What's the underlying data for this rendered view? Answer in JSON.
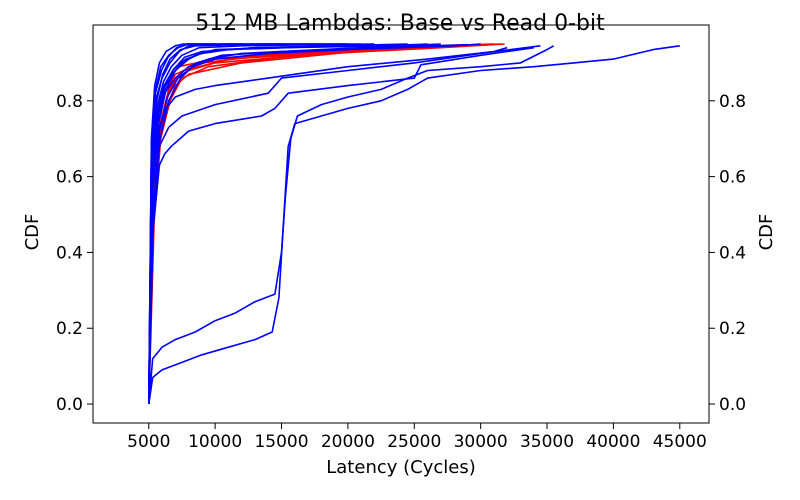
{
  "chart_data": {
    "type": "line",
    "title": "512 MB Lambdas: Base vs Read 0-bit",
    "xlabel": "Latency (Cycles)",
    "ylabel": "CDF",
    "ylabel_right": "CDF",
    "xlim": [
      800,
      47200
    ],
    "ylim": [
      -0.05,
      1.0
    ],
    "xticks": [
      5000,
      10000,
      15000,
      20000,
      25000,
      30000,
      35000,
      40000,
      45000
    ],
    "yticks": [
      0.0,
      0.2,
      0.4,
      0.6,
      0.8
    ],
    "xtick_labels": [
      "5000",
      "10000",
      "15000",
      "20000",
      "25000",
      "30000",
      "35000",
      "40000",
      "45000"
    ],
    "ytick_labels": [
      "0.0",
      "0.2",
      "0.4",
      "0.6",
      "0.8"
    ],
    "grid": false,
    "colors": {
      "base": "#ff0000",
      "read": "#0000ff"
    },
    "series": [
      {
        "color": "#ff0000",
        "points": [
          [
            5000,
            0
          ],
          [
            5200,
            0.42
          ],
          [
            5500,
            0.62
          ],
          [
            6000,
            0.75
          ],
          [
            6500,
            0.82
          ],
          [
            7000,
            0.86
          ],
          [
            8000,
            0.88
          ],
          [
            10000,
            0.9
          ],
          [
            20000,
            0.93
          ],
          [
            28000,
            0.945
          ],
          [
            31000,
            0.95
          ]
        ]
      },
      {
        "color": "#ff0000",
        "points": [
          [
            5000,
            0
          ],
          [
            5300,
            0.5
          ],
          [
            5700,
            0.68
          ],
          [
            6300,
            0.78
          ],
          [
            7000,
            0.84
          ],
          [
            8000,
            0.87
          ],
          [
            12000,
            0.9
          ],
          [
            22000,
            0.935
          ],
          [
            31500,
            0.95
          ]
        ]
      },
      {
        "color": "#ff0000",
        "points": [
          [
            5000,
            0
          ],
          [
            5200,
            0.55
          ],
          [
            5600,
            0.72
          ],
          [
            6200,
            0.82
          ],
          [
            7000,
            0.87
          ],
          [
            9000,
            0.9
          ],
          [
            15000,
            0.925
          ],
          [
            25000,
            0.94
          ],
          [
            30500,
            0.948
          ]
        ]
      },
      {
        "color": "#ff0000",
        "points": [
          [
            5000,
            0
          ],
          [
            5400,
            0.48
          ],
          [
            5900,
            0.7
          ],
          [
            6600,
            0.8
          ],
          [
            7500,
            0.86
          ],
          [
            9500,
            0.89
          ],
          [
            16000,
            0.92
          ],
          [
            27000,
            0.94
          ],
          [
            31800,
            0.95
          ]
        ]
      },
      {
        "color": "#ff0000",
        "points": [
          [
            5000,
            0
          ],
          [
            5250,
            0.6
          ],
          [
            5650,
            0.76
          ],
          [
            6200,
            0.84
          ],
          [
            7200,
            0.89
          ],
          [
            10000,
            0.91
          ],
          [
            20000,
            0.935
          ],
          [
            29000,
            0.948
          ]
        ]
      },
      {
        "color": "#ff0000",
        "points": [
          [
            5000,
            0
          ],
          [
            5350,
            0.52
          ],
          [
            5800,
            0.73
          ],
          [
            6500,
            0.83
          ],
          [
            7600,
            0.88
          ],
          [
            11000,
            0.91
          ],
          [
            22000,
            0.935
          ],
          [
            30800,
            0.95
          ]
        ]
      },
      {
        "color": "#0000ff",
        "points": [
          [
            5000,
            0
          ],
          [
            5300,
            0.07
          ],
          [
            6000,
            0.09
          ],
          [
            7500,
            0.11
          ],
          [
            9000,
            0.13
          ],
          [
            11000,
            0.15
          ],
          [
            13000,
            0.17
          ],
          [
            14300,
            0.19
          ],
          [
            14800,
            0.28
          ],
          [
            15100,
            0.45
          ],
          [
            15500,
            0.68
          ],
          [
            16000,
            0.74
          ],
          [
            18000,
            0.76
          ],
          [
            20000,
            0.78
          ],
          [
            22500,
            0.8
          ],
          [
            24500,
            0.83
          ],
          [
            26000,
            0.86
          ],
          [
            30000,
            0.88
          ],
          [
            34000,
            0.89
          ],
          [
            37000,
            0.9
          ],
          [
            40000,
            0.91
          ],
          [
            43000,
            0.935
          ],
          [
            45000,
            0.945
          ]
        ]
      },
      {
        "color": "#0000ff",
        "points": [
          [
            5000,
            0
          ],
          [
            5300,
            0.12
          ],
          [
            6000,
            0.15
          ],
          [
            7000,
            0.17
          ],
          [
            8500,
            0.19
          ],
          [
            10000,
            0.22
          ],
          [
            11500,
            0.24
          ],
          [
            13000,
            0.27
          ],
          [
            14500,
            0.29
          ],
          [
            15000,
            0.4
          ],
          [
            15300,
            0.55
          ],
          [
            15700,
            0.7
          ],
          [
            16200,
            0.76
          ],
          [
            18000,
            0.79
          ],
          [
            20000,
            0.81
          ],
          [
            22500,
            0.83
          ],
          [
            24500,
            0.86
          ],
          [
            26000,
            0.88
          ],
          [
            30000,
            0.89
          ],
          [
            33000,
            0.9
          ],
          [
            35000,
            0.935
          ],
          [
            35500,
            0.945
          ]
        ]
      },
      {
        "color": "#0000ff",
        "points": [
          [
            5000,
            0
          ],
          [
            5300,
            0.45
          ],
          [
            5800,
            0.63
          ],
          [
            6200,
            0.66
          ],
          [
            6700,
            0.68
          ],
          [
            8000,
            0.72
          ],
          [
            10000,
            0.74
          ],
          [
            13500,
            0.76
          ],
          [
            14000,
            0.77
          ],
          [
            14500,
            0.78
          ],
          [
            15500,
            0.82
          ],
          [
            20000,
            0.84
          ],
          [
            25000,
            0.86
          ],
          [
            25500,
            0.895
          ],
          [
            30000,
            0.92
          ],
          [
            34000,
            0.94
          ]
        ]
      },
      {
        "color": "#0000ff",
        "points": [
          [
            5000,
            0
          ],
          [
            5300,
            0.5
          ],
          [
            5800,
            0.68
          ],
          [
            6500,
            0.73
          ],
          [
            7500,
            0.76
          ],
          [
            10000,
            0.79
          ],
          [
            14000,
            0.82
          ],
          [
            15000,
            0.86
          ],
          [
            20000,
            0.88
          ],
          [
            25000,
            0.9
          ],
          [
            30000,
            0.925
          ],
          [
            34500,
            0.945
          ]
        ]
      },
      {
        "color": "#0000ff",
        "points": [
          [
            5000,
            0
          ],
          [
            5250,
            0.55
          ],
          [
            5700,
            0.72
          ],
          [
            6300,
            0.78
          ],
          [
            7000,
            0.81
          ],
          [
            8500,
            0.83
          ],
          [
            10000,
            0.84
          ],
          [
            14000,
            0.86
          ],
          [
            20000,
            0.89
          ],
          [
            26000,
            0.91
          ],
          [
            31000,
            0.93
          ],
          [
            32000,
            0.94
          ]
        ]
      },
      {
        "color": "#0000ff",
        "points": [
          [
            5000,
            0
          ],
          [
            5200,
            0.6
          ],
          [
            5600,
            0.76
          ],
          [
            6100,
            0.83
          ],
          [
            6800,
            0.87
          ],
          [
            7500,
            0.9
          ],
          [
            8500,
            0.92
          ],
          [
            10000,
            0.935
          ],
          [
            15000,
            0.94
          ],
          [
            23000,
            0.945
          ],
          [
            26000,
            0.95
          ]
        ]
      },
      {
        "color": "#0000ff",
        "points": [
          [
            5000,
            0
          ],
          [
            5300,
            0.58
          ],
          [
            5700,
            0.74
          ],
          [
            6200,
            0.82
          ],
          [
            7000,
            0.86
          ],
          [
            8000,
            0.89
          ],
          [
            9500,
            0.91
          ],
          [
            12000,
            0.925
          ],
          [
            18000,
            0.935
          ],
          [
            24000,
            0.945
          ],
          [
            27000,
            0.95
          ]
        ]
      },
      {
        "color": "#0000ff",
        "points": [
          [
            5000,
            0
          ],
          [
            5200,
            0.65
          ],
          [
            5500,
            0.8
          ],
          [
            6000,
            0.86
          ],
          [
            6600,
            0.9
          ],
          [
            7300,
            0.93
          ],
          [
            8000,
            0.945
          ],
          [
            11000,
            0.95
          ],
          [
            20000,
            0.95
          ]
        ]
      },
      {
        "color": "#0000ff",
        "points": [
          [
            5000,
            0
          ],
          [
            5250,
            0.62
          ],
          [
            5600,
            0.78
          ],
          [
            6100,
            0.85
          ],
          [
            6700,
            0.89
          ],
          [
            7500,
            0.92
          ],
          [
            8800,
            0.94
          ],
          [
            12000,
            0.945
          ],
          [
            22000,
            0.95
          ]
        ]
      },
      {
        "color": "#0000ff",
        "points": [
          [
            5000,
            0
          ],
          [
            5300,
            0.56
          ],
          [
            5750,
            0.74
          ],
          [
            6300,
            0.83
          ],
          [
            7000,
            0.88
          ],
          [
            8000,
            0.91
          ],
          [
            9200,
            0.93
          ],
          [
            13000,
            0.94
          ],
          [
            25000,
            0.948
          ]
        ]
      },
      {
        "color": "#0000ff",
        "points": [
          [
            5000,
            0
          ],
          [
            5200,
            0.68
          ],
          [
            5500,
            0.83
          ],
          [
            5900,
            0.89
          ],
          [
            6500,
            0.92
          ],
          [
            7200,
            0.94
          ],
          [
            8000,
            0.95
          ],
          [
            15000,
            0.95
          ]
        ]
      },
      {
        "color": "#0000ff",
        "points": [
          [
            5000,
            0
          ],
          [
            5350,
            0.52
          ],
          [
            5800,
            0.72
          ],
          [
            6400,
            0.81
          ],
          [
            7200,
            0.86
          ],
          [
            8300,
            0.89
          ],
          [
            10000,
            0.91
          ],
          [
            14000,
            0.925
          ],
          [
            20000,
            0.935
          ],
          [
            28000,
            0.945
          ],
          [
            30000,
            0.95
          ]
        ]
      },
      {
        "color": "#0000ff",
        "points": [
          [
            5000,
            0
          ],
          [
            5250,
            0.6
          ],
          [
            5650,
            0.77
          ],
          [
            6150,
            0.84
          ],
          [
            6800,
            0.88
          ],
          [
            7700,
            0.915
          ],
          [
            9000,
            0.93
          ],
          [
            13000,
            0.94
          ],
          [
            19000,
            0.945
          ],
          [
            24500,
            0.95
          ]
        ]
      },
      {
        "color": "#0000ff",
        "points": [
          [
            5000,
            0
          ],
          [
            5200,
            0.7
          ],
          [
            5450,
            0.84
          ],
          [
            5800,
            0.9
          ],
          [
            6300,
            0.93
          ],
          [
            7000,
            0.945
          ],
          [
            7600,
            0.95
          ],
          [
            12000,
            0.95
          ]
        ]
      },
      {
        "color": "#0000ff",
        "points": [
          [
            5000,
            0
          ],
          [
            5300,
            0.59
          ],
          [
            5700,
            0.76
          ],
          [
            6250,
            0.84
          ],
          [
            6900,
            0.885
          ],
          [
            7800,
            0.91
          ],
          [
            9000,
            0.925
          ],
          [
            11000,
            0.935
          ],
          [
            17000,
            0.942
          ],
          [
            26500,
            0.948
          ]
        ]
      },
      {
        "color": "#0000ff",
        "points": [
          [
            5000,
            0
          ],
          [
            5250,
            0.64
          ],
          [
            5600,
            0.8
          ],
          [
            6050,
            0.87
          ],
          [
            6600,
            0.91
          ],
          [
            7400,
            0.935
          ],
          [
            8500,
            0.945
          ],
          [
            13500,
            0.95
          ],
          [
            21000,
            0.95
          ]
        ]
      },
      {
        "color": "#0000ff",
        "points": [
          [
            5000,
            0
          ],
          [
            5350,
            0.5
          ],
          [
            5850,
            0.7
          ],
          [
            6500,
            0.8
          ],
          [
            7400,
            0.86
          ],
          [
            8600,
            0.9
          ],
          [
            10500,
            0.92
          ],
          [
            15000,
            0.93
          ],
          [
            22000,
            0.94
          ],
          [
            29000,
            0.948
          ]
        ]
      },
      {
        "color": "#0000ff",
        "points": [
          [
            5000,
            0
          ],
          [
            5200,
            0.66
          ],
          [
            5500,
            0.82
          ],
          [
            5950,
            0.88
          ],
          [
            6450,
            0.915
          ],
          [
            7100,
            0.94
          ],
          [
            7900,
            0.95
          ],
          [
            10000,
            0.95
          ]
        ]
      }
    ]
  }
}
